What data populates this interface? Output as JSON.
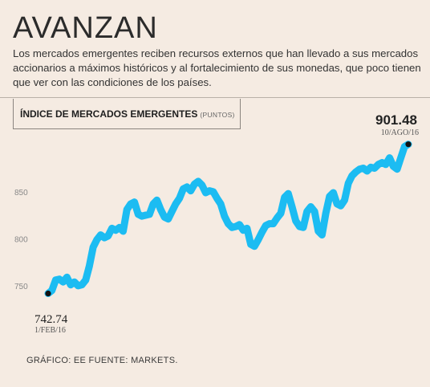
{
  "header": {
    "title": "AVANZAN",
    "subtitle": "Los mercados emergentes reciben recursos externos que han llevado a sus mercados accionarios a máximos históricos y al fortalecimiento de sus monedas, que poco tienen que ver con las condiciones de los países."
  },
  "footer": {
    "source": "GRÁFICO: EE  FUENTE: MARKETS."
  },
  "colors": {
    "background": "#f5ebe2",
    "line": "#1cbcf2",
    "endpoint": "#111111"
  },
  "chart_data": {
    "type": "line",
    "title": "ÍNDICE DE MERCADOS EMERGENTES",
    "unit": "(PUNTOS)",
    "ylim": [
      715,
      920
    ],
    "yticks": [
      750,
      800,
      850
    ],
    "ytick_labels": [
      "750",
      "800",
      "850"
    ],
    "grid": false,
    "start": {
      "date": "1/FEB/16",
      "value": 742.74,
      "value_label": "742.74"
    },
    "end": {
      "date": "10/AGO/16",
      "value": 901.48,
      "value_label": "901.48"
    },
    "values": [
      742.74,
      746,
      757,
      758,
      755,
      760,
      752,
      755,
      751,
      752,
      757,
      772,
      792,
      800,
      805,
      802,
      804,
      812,
      810,
      813,
      809,
      832,
      838,
      840,
      827,
      825,
      826,
      827,
      838,
      842,
      832,
      824,
      822,
      830,
      838,
      844,
      854,
      856,
      852,
      859,
      862,
      858,
      850,
      852,
      851,
      844,
      838,
      825,
      817,
      813,
      814,
      816,
      810,
      812,
      795,
      793,
      800,
      808,
      815,
      817,
      817,
      823,
      828,
      845,
      849,
      835,
      820,
      814,
      813,
      830,
      835,
      830,
      809,
      805,
      828,
      846,
      850,
      838,
      836,
      842,
      860,
      868,
      872,
      875,
      876,
      873,
      877,
      876,
      880,
      882,
      880,
      887,
      878,
      875,
      887,
      899,
      901.48
    ]
  }
}
